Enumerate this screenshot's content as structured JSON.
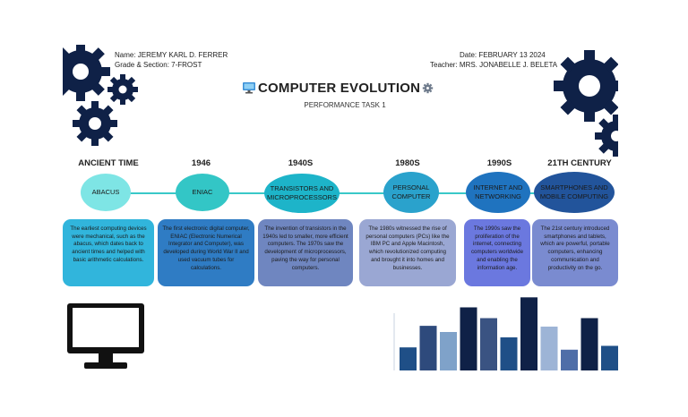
{
  "header": {
    "name": "Name: JEREMY KARL D. FERRER",
    "grade": "Grade & Section: 7-FROST",
    "date": "Date: FEBRUARY 13 2024",
    "teacher": "Teacher: MRS. JONABELLE J. BELETA"
  },
  "title": "COMPUTER EVOLUTION",
  "subtitle": "PERFORMANCE TASK 1",
  "icons": {
    "title_left": "computer-monitor-icon",
    "title_right": "gear-icon"
  },
  "colors": {
    "navy": "#0f2147",
    "timeline_line": "#39c8c8",
    "bubble_1": "#7ee5e5",
    "bubble_2": "#33c6c6",
    "bubble_3": "#1db4c9",
    "bubble_4": "#2aa2cc",
    "bubble_5": "#1f73bf",
    "bubble_6": "#22549b",
    "card_1": "#31b5dc",
    "card_2": "#2f7cc4",
    "card_3": "#6f86c0",
    "card_4": "#9aa7d3",
    "card_5": "#6b78df",
    "card_6": "#7a8bd0"
  },
  "timeline": [
    {
      "era": "ANCIENT TIME",
      "label": "ABACUS",
      "text": "The earliest computing devices were mechanical, such as the abacus, which dates back to ancient times and helped with basic arithmetic calculations."
    },
    {
      "era": "1946",
      "label": "ENIAC",
      "text": "The first electronic digital computer, ENIAC (Electronic Numerical Integrator and Computer), was developed during World War II and used vacuum tubes for calculations."
    },
    {
      "era": "1940S",
      "label": "TRANSISTORS AND MICROPROCESSORS",
      "text": "The invention of transistors in the 1940s led to smaller, more efficient computers. The 1970s saw the development of microprocessors, paving the way for personal computers."
    },
    {
      "era": "1980S",
      "label": "PERSONAL COMPUTER",
      "text": "The 1980s witnessed the rise of personal computers (PCs) like the IBM PC and Apple Macintosh, which revolutionized computing and brought it into homes and businesses."
    },
    {
      "era": "1990S",
      "label": "INTERNET AND NETWORKING",
      "text": "The 1990s saw the proliferation of the internet, connecting computers worldwide and enabling the information age."
    },
    {
      "era": "21TH CENTURY",
      "label": "SMARTPHONES AND MOBILE COMPUTING",
      "text": "The 21st century introduced smartphones and tablets, which are powerful, portable computers, enhancing communication and productivity on the go."
    }
  ],
  "decor_bars": [
    {
      "level": 0.3,
      "color": "#1f4f87"
    },
    {
      "level": 0.58,
      "color": "#2e4a7c"
    },
    {
      "level": 0.5,
      "color": "#7fa2c9"
    },
    {
      "level": 0.82,
      "color": "#0f2147"
    },
    {
      "level": 0.68,
      "color": "#3a5382"
    },
    {
      "level": 0.43,
      "color": "#1f4f87"
    },
    {
      "level": 0.95,
      "color": "#0f2147"
    },
    {
      "level": 0.57,
      "color": "#9db4d6"
    },
    {
      "level": 0.27,
      "color": "#4f6ea8"
    },
    {
      "level": 0.68,
      "color": "#0f2147"
    },
    {
      "level": 0.32,
      "color": "#1f4f87"
    }
  ]
}
